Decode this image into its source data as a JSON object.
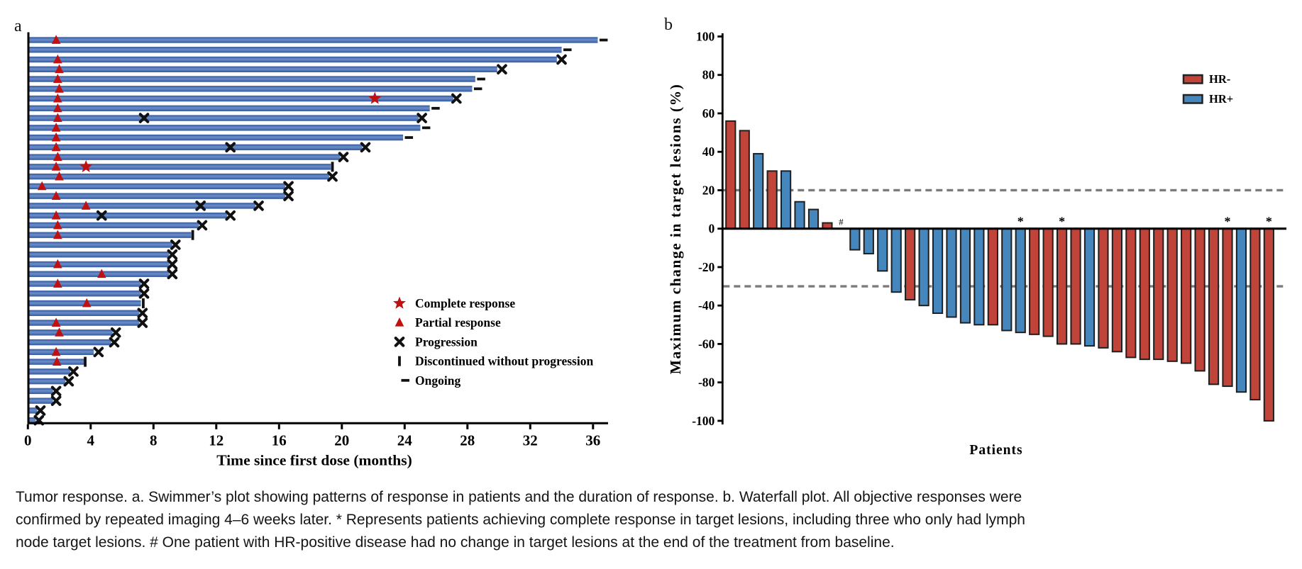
{
  "panel_a_label": "a",
  "panel_b_label": "b",
  "caption": {
    "lines": [
      "Tumor response. a. Swimmer’s plot showing patterns of response in patients and the duration of response. b. Waterfall plot. All objective responses were",
      "confirmed by repeated imaging 4–6 weeks later. * Represents patients achieving complete response in target lesions, including three who only had lymph",
      "node target lesions. # One patient with HR-positive disease had no change in target lesions at the end of the treatment from baseline."
    ]
  },
  "colors": {
    "swimmer_bar_mid": "#6C8EC9",
    "swimmer_bar_edge": "#33599F",
    "marker_red": "#C01010",
    "marker_black": "#111111",
    "hr_neg": "#C0443A",
    "hr_pos": "#4587BC",
    "bar_stroke": "#1F1F1F",
    "dashed_line": "#7B7B7B",
    "axis": "#000000"
  },
  "chart_data": [
    {
      "type": "swimmer",
      "xlabel": "Time since first dose (months)",
      "xticks": [
        0,
        4,
        8,
        12,
        16,
        20,
        24,
        28,
        32,
        36
      ],
      "xlim": [
        0,
        37
      ],
      "legend": [
        {
          "marker": "star",
          "label": "Complete response"
        },
        {
          "marker": "tri",
          "label": "Partial response"
        },
        {
          "marker": "x",
          "label": "Progression"
        },
        {
          "marker": "tick",
          "label": "Discontinued without progression"
        },
        {
          "marker": "dash",
          "label": "Ongoing"
        }
      ],
      "patients": [
        {
          "bar": 36.3,
          "m": [
            [
              "tri",
              1.8
            ],
            [
              "dash",
              36.3
            ]
          ]
        },
        {
          "bar": 34.0,
          "m": [
            [
              "dash",
              34.0
            ]
          ]
        },
        {
          "bar": 33.7,
          "m": [
            [
              "tri",
              1.9
            ],
            [
              "x",
              34.0
            ]
          ]
        },
        {
          "bar": 29.9,
          "m": [
            [
              "tri",
              2.0
            ],
            [
              "x",
              30.2
            ]
          ]
        },
        {
          "bar": 28.5,
          "m": [
            [
              "tri",
              1.9
            ],
            [
              "dash",
              28.5
            ]
          ]
        },
        {
          "bar": 28.3,
          "m": [
            [
              "tri",
              2.0
            ],
            [
              "dash",
              28.3
            ]
          ]
        },
        {
          "bar": 27.1,
          "m": [
            [
              "tri",
              1.9
            ],
            [
              "star",
              22.1
            ],
            [
              "x",
              27.3
            ]
          ]
        },
        {
          "bar": 25.6,
          "m": [
            [
              "tri",
              1.9
            ],
            [
              "dash",
              25.6
            ]
          ]
        },
        {
          "bar": 24.9,
          "m": [
            [
              "tri",
              1.9
            ],
            [
              "x",
              7.4
            ],
            [
              "x",
              25.1
            ]
          ]
        },
        {
          "bar": 25.0,
          "m": [
            [
              "tri",
              1.8
            ],
            [
              "dash",
              25.0
            ]
          ]
        },
        {
          "bar": 23.9,
          "m": [
            [
              "tri",
              1.8
            ],
            [
              "dash",
              23.9
            ]
          ]
        },
        {
          "bar": 21.3,
          "m": [
            [
              "tri",
              1.8
            ],
            [
              "x",
              12.9
            ],
            [
              "x",
              21.5
            ]
          ]
        },
        {
          "bar": 19.9,
          "m": [
            [
              "tri",
              1.9
            ],
            [
              "x",
              20.1
            ]
          ]
        },
        {
          "bar": 19.3,
          "m": [
            [
              "tri",
              1.8
            ],
            [
              "star",
              3.7
            ],
            [
              "tick",
              19.4
            ]
          ]
        },
        {
          "bar": 19.2,
          "m": [
            [
              "tri",
              2.0
            ],
            [
              "x",
              19.4
            ]
          ]
        },
        {
          "bar": 16.4,
          "m": [
            [
              "tri",
              0.9
            ],
            [
              "x",
              16.6
            ]
          ]
        },
        {
          "bar": 16.4,
          "m": [
            [
              "tri",
              1.8
            ],
            [
              "x",
              16.6
            ]
          ]
        },
        {
          "bar": 14.5,
          "m": [
            [
              "tri",
              3.7
            ],
            [
              "x",
              11.0
            ],
            [
              "x",
              14.7
            ]
          ]
        },
        {
          "bar": 12.7,
          "m": [
            [
              "tri",
              1.8
            ],
            [
              "x",
              4.7
            ],
            [
              "x",
              12.9
            ]
          ]
        },
        {
          "bar": 10.9,
          "m": [
            [
              "tri",
              1.9
            ],
            [
              "x",
              11.1
            ]
          ]
        },
        {
          "bar": 10.4,
          "m": [
            [
              "tri",
              1.9
            ],
            [
              "tick",
              10.5
            ]
          ]
        },
        {
          "bar": 9.2,
          "m": [
            [
              "x",
              9.4
            ]
          ]
        },
        {
          "bar": 9.0,
          "m": [
            [
              "x",
              9.2
            ]
          ]
        },
        {
          "bar": 9.0,
          "m": [
            [
              "tri",
              1.9
            ],
            [
              "x",
              9.2
            ]
          ]
        },
        {
          "bar": 9.0,
          "m": [
            [
              "tri",
              4.7
            ],
            [
              "x",
              9.2
            ]
          ]
        },
        {
          "bar": 7.2,
          "m": [
            [
              "tri",
              1.9
            ],
            [
              "x",
              7.4
            ]
          ]
        },
        {
          "bar": 7.2,
          "m": [
            [
              "x",
              7.4
            ]
          ]
        },
        {
          "bar": 7.2,
          "m": [
            [
              "tri",
              3.75
            ],
            [
              "tick",
              7.35
            ]
          ]
        },
        {
          "bar": 7.1,
          "m": [
            [
              "x",
              7.3
            ]
          ]
        },
        {
          "bar": 7.1,
          "m": [
            [
              "tri",
              1.8
            ],
            [
              "x",
              7.3
            ]
          ]
        },
        {
          "bar": 5.4,
          "m": [
            [
              "tri",
              2.0
            ],
            [
              "x",
              5.6
            ]
          ]
        },
        {
          "bar": 5.3,
          "m": [
            [
              "x",
              5.5
            ]
          ]
        },
        {
          "bar": 4.2,
          "m": [
            [
              "tri",
              1.8
            ],
            [
              "x",
              4.5
            ]
          ]
        },
        {
          "bar": 3.6,
          "m": [
            [
              "tri",
              1.85
            ],
            [
              "tick",
              3.65
            ]
          ]
        },
        {
          "bar": 2.7,
          "m": [
            [
              "x",
              2.9
            ]
          ]
        },
        {
          "bar": 2.4,
          "m": [
            [
              "x",
              2.6
            ]
          ]
        },
        {
          "bar": 1.6,
          "m": [
            [
              "x",
              1.8
            ]
          ]
        },
        {
          "bar": 1.6,
          "m": [
            [
              "x",
              1.8
            ]
          ]
        },
        {
          "bar": 0.6,
          "m": [
            [
              "x",
              0.8
            ]
          ]
        },
        {
          "bar": 0.5,
          "m": [
            [
              "x",
              0.7
            ]
          ]
        }
      ]
    },
    {
      "type": "waterfall",
      "ylabel": "Maximum change in target lesions (%)",
      "xlabel": "Patients",
      "yticks": [
        100,
        80,
        60,
        40,
        20,
        0,
        -20,
        -40,
        -60,
        -80,
        -100
      ],
      "ylim": [
        -100,
        100
      ],
      "ref_lines": [
        20,
        -30
      ],
      "legend": [
        {
          "label": "HR-",
          "group": "neg"
        },
        {
          "label": "HR+",
          "group": "pos"
        }
      ],
      "patients": [
        {
          "value": 56,
          "group": "neg",
          "mark": null
        },
        {
          "value": 51,
          "group": "neg",
          "mark": null
        },
        {
          "value": 39,
          "group": "pos",
          "mark": null
        },
        {
          "value": 30,
          "group": "neg",
          "mark": null
        },
        {
          "value": 30,
          "group": "pos",
          "mark": null
        },
        {
          "value": 14,
          "group": "pos",
          "mark": null
        },
        {
          "value": 10,
          "group": "pos",
          "mark": null
        },
        {
          "value": 3,
          "group": "neg",
          "mark": null
        },
        {
          "value": 0,
          "group": "pos",
          "mark": "#"
        },
        {
          "value": -11,
          "group": "pos",
          "mark": null
        },
        {
          "value": -13,
          "group": "pos",
          "mark": null
        },
        {
          "value": -22,
          "group": "pos",
          "mark": null
        },
        {
          "value": -33,
          "group": "pos",
          "mark": null
        },
        {
          "value": -37,
          "group": "neg",
          "mark": null
        },
        {
          "value": -40,
          "group": "pos",
          "mark": null
        },
        {
          "value": -44,
          "group": "pos",
          "mark": null
        },
        {
          "value": -46,
          "group": "pos",
          "mark": null
        },
        {
          "value": -49,
          "group": "pos",
          "mark": null
        },
        {
          "value": -50,
          "group": "pos",
          "mark": null
        },
        {
          "value": -50,
          "group": "neg",
          "mark": null
        },
        {
          "value": -53,
          "group": "pos",
          "mark": null
        },
        {
          "value": -54,
          "group": "pos",
          "mark": "*"
        },
        {
          "value": -55,
          "group": "neg",
          "mark": null
        },
        {
          "value": -56,
          "group": "neg",
          "mark": null
        },
        {
          "value": -60,
          "group": "neg",
          "mark": "*"
        },
        {
          "value": -60,
          "group": "neg",
          "mark": null
        },
        {
          "value": -61,
          "group": "pos",
          "mark": null
        },
        {
          "value": -62,
          "group": "neg",
          "mark": null
        },
        {
          "value": -64,
          "group": "neg",
          "mark": null
        },
        {
          "value": -67,
          "group": "neg",
          "mark": null
        },
        {
          "value": -68,
          "group": "neg",
          "mark": null
        },
        {
          "value": -68,
          "group": "neg",
          "mark": null
        },
        {
          "value": -69,
          "group": "neg",
          "mark": null
        },
        {
          "value": -70,
          "group": "neg",
          "mark": null
        },
        {
          "value": -74,
          "group": "neg",
          "mark": null
        },
        {
          "value": -81,
          "group": "neg",
          "mark": null
        },
        {
          "value": -82,
          "group": "neg",
          "mark": "*"
        },
        {
          "value": -85,
          "group": "pos",
          "mark": null
        },
        {
          "value": -89,
          "group": "neg",
          "mark": null
        },
        {
          "value": -100,
          "group": "neg",
          "mark": "*"
        }
      ]
    }
  ]
}
